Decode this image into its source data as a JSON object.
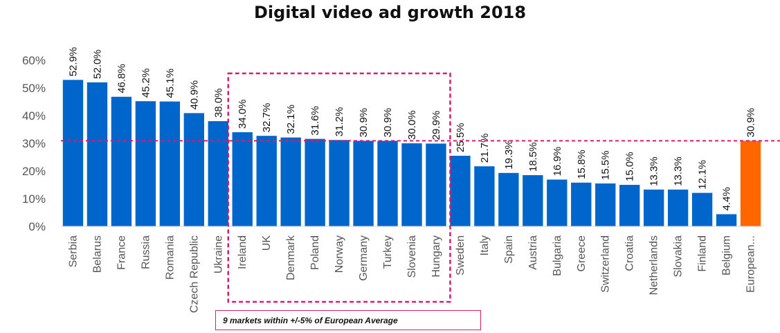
{
  "chart_data": {
    "type": "bar",
    "title": "Digital video ad growth 2018",
    "xlabel": "",
    "ylabel": "",
    "ylim": [
      0,
      60
    ],
    "yticks": [
      "0%",
      "10%",
      "20%",
      "30%",
      "40%",
      "50%",
      "60%"
    ],
    "ytick_values": [
      0,
      10,
      20,
      30,
      40,
      50,
      60
    ],
    "categories": [
      "Serbia",
      "Belarus",
      "France",
      "Russia",
      "Romania",
      "Czech Republic",
      "Ukraine",
      "Ireland",
      "UK",
      "Denmark",
      "Poland",
      "Norway",
      "Germany",
      "Turkey",
      "Slovenia",
      "Hungary",
      "Sweden",
      "Italy",
      "Spain",
      "Austria",
      "Bulgaria",
      "Greece",
      "Switzerland",
      "Croatia",
      "Netherlands",
      "Slovakia",
      "Finland",
      "Belgium",
      "European..."
    ],
    "values": [
      52.9,
      52.0,
      46.8,
      45.2,
      45.1,
      40.9,
      38.0,
      34.0,
      32.7,
      32.1,
      31.6,
      31.2,
      30.9,
      30.9,
      30.0,
      29.9,
      25.5,
      21.7,
      19.3,
      18.5,
      16.9,
      15.8,
      15.5,
      15.0,
      13.3,
      13.3,
      12.1,
      4.4,
      30.9
    ],
    "data_labels": [
      "52.9%",
      "52.0%",
      "46.8%",
      "45.2%",
      "45.1%",
      "40.9%",
      "38.0%",
      "34.0%",
      "32.7%",
      "32.1%",
      "31.6%",
      "31.2%",
      "30.9%",
      "30.9%",
      "30.0%",
      "29.9%",
      "25.5%",
      "21.7%",
      "19.3%",
      "18.5%",
      "16.9%",
      "15.8%",
      "15.5%",
      "15.0%",
      "13.3%",
      "13.3%",
      "12.1%",
      "4.4%",
      "30.9%"
    ],
    "highlight_index": 28,
    "reference_line": {
      "value": 30.9,
      "label": "European Average"
    },
    "highlight_group": {
      "from_index": 7,
      "to_index": 15
    },
    "annotation": "9 markets within +/-5% of European Average",
    "colors": {
      "bar": "#0066cc",
      "highlight": "#ff6600",
      "reference": "#d81b6b",
      "axis": "#555555"
    }
  }
}
